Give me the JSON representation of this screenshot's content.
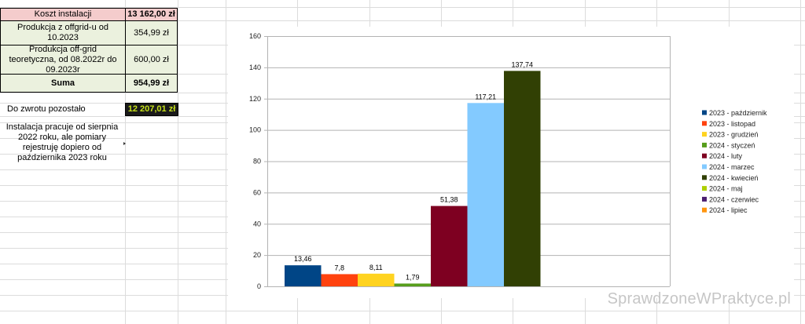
{
  "table": {
    "cost_label": "Koszt instalacji",
    "cost_value": "13 162,00 zł",
    "prod_offgrid_label": "Produkcja z offgrid-u od 10.2023",
    "prod_offgrid_value": "354,99 zł",
    "prod_theory_label": "Produkcja off-grid teoretyczna, od 08.2022r do 09.2023r",
    "prod_theory_value": "600,00 zł",
    "sum_label": "Suma",
    "sum_value": "954,99 zł",
    "remaining_label": "Do zwrotu pozostało",
    "remaining_value": "12 207,01 zł",
    "note": "Instalacja pracuje od sierpnia 2022 roku, ale pomiary rejestruję dopiero od października 2023 roku"
  },
  "colors": {
    "header_fill": "#f4cccc",
    "row_fill": "#ebf1de",
    "highlight_fill": "#1a1a1a",
    "highlight_text": "#c5e01a"
  },
  "watermark": "SprawdzoneWPraktyce.pl",
  "chart_data": {
    "type": "bar",
    "categories": [
      "2023 - październik",
      "2023 - listopad",
      "2023 - grudzień",
      "2024 - styczeń",
      "2024 - luty",
      "2024 - marzec",
      "2024 - kwiecień",
      "2024 - maj",
      "2024 - czerwiec",
      "2024 - lipiec"
    ],
    "values": [
      13.46,
      7.8,
      8.11,
      1.79,
      51.38,
      117.21,
      137.74,
      null,
      null,
      null
    ],
    "data_labels": [
      "13,46",
      "7,8",
      "8,11",
      "1,79",
      "51,38",
      "117,21",
      "137,74",
      "",
      "",
      ""
    ],
    "colors": [
      "#004586",
      "#ff420e",
      "#ffd320",
      "#579d1c",
      "#7e0021",
      "#83caff",
      "#314004",
      "#aecf00",
      "#4b1f6f",
      "#ff950e"
    ],
    "ylim": [
      0,
      160
    ],
    "yticks": [
      "0",
      "20",
      "40",
      "60",
      "80",
      "100",
      "120",
      "140",
      "160"
    ],
    "grid": true,
    "legend": "right",
    "title": "",
    "xlabel": "",
    "ylabel": ""
  }
}
